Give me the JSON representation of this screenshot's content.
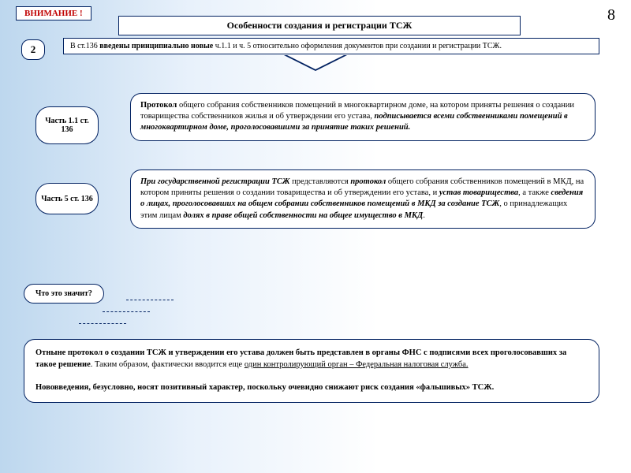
{
  "page_number": "8",
  "attention": "ВНИМАНИЕ !",
  "title": "Особенности создания и регистрации ТСЖ",
  "badge_number": "2",
  "intro": {
    "pre": "В ст.136 ",
    "bold": "введены принципиально новые ",
    "post": "ч.1.1 и ч. 5 относительно оформления документов при создании и регистрации ТСЖ."
  },
  "label1": "Часть 1.1 ст. 136",
  "label2": "Часть 5 ст. 136",
  "box1": {
    "b1": "Протокол ",
    "t1": "общего собрания собственников помещений в многоквартирном доме, на котором приняты решения о создании товарищества собственников жилья и об утверждении его устава, ",
    "b2": "подписывается всеми собственниками помещений в многоквартирном доме, проголосовавшими за принятие таких решений."
  },
  "box2": {
    "b1": "При государственной регистрации ТСЖ ",
    "t1": "представляются ",
    "b2": "протокол ",
    "t2": "общего собрания собственников помещений в МКД, на котором приняты решения о создании товарищества и об утверждении его устава, и ",
    "b3": "устав товарищества",
    "t3": ", а также ",
    "b4": "сведения о лицах, проголосовавших на общем собрании собственников помещений в МКД за создание ТСЖ",
    "t4": ", о принадлежащих этим лицам ",
    "b5": "долях в праве общей собственности на общее имущество в МКД",
    "t5": "."
  },
  "question": "Что это значит?",
  "conclusion": {
    "p1a": "Отныне протокол о создании ТСЖ и утверждении его устава должен быть представлен в органы ФНС с подписями всех проголосовавших за такое решение",
    "p1b": ". Таким образом, фактически вводится еще ",
    "p1u": "один контролирующий орган – Федеральная налоговая служба.",
    "p2": "Нововведения, безусловно, носят позитивный характер, поскольку очевидно снижают риск создания «фальшивых» ТСЖ."
  },
  "colors": {
    "border": "#002060",
    "attention_text": "#c00000",
    "bg_gradient_start": "#bdd7ee",
    "bg_gradient_end": "#ffffff"
  },
  "typography": {
    "family": "Times New Roman",
    "body_pt": 10.5,
    "title_pt": 12
  }
}
